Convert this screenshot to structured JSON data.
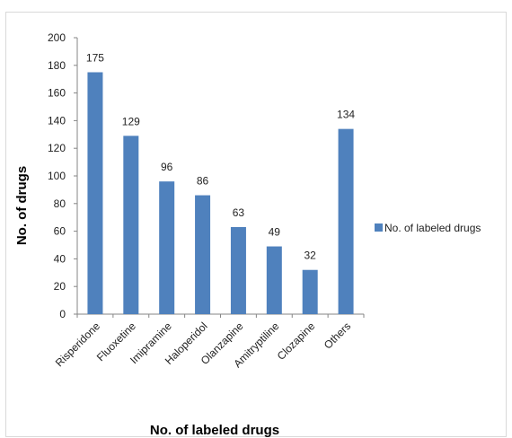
{
  "chart_data": {
    "type": "bar",
    "categories": [
      "Risperidone",
      "Fluoxetine",
      "Imipramine",
      "Haloperidol",
      "Olanzapine",
      "Amitryptiline",
      "Clozapine",
      "Others"
    ],
    "series": [
      {
        "name": "No. of  labeled drugs",
        "values": [
          175,
          129,
          96,
          86,
          63,
          49,
          32,
          134
        ]
      }
    ],
    "data_labels": [
      "175",
      "129",
      "96",
      "86",
      "63",
      "49",
      "32",
      "134"
    ],
    "xlabel": "No. of labeled drugs",
    "ylabel": "No. of drugs",
    "ylim": [
      0,
      200
    ],
    "yticks": [
      0,
      20,
      40,
      60,
      80,
      100,
      120,
      140,
      160,
      180,
      200
    ],
    "grid": false,
    "legend": "right",
    "bar_color": "#4f81bd"
  }
}
